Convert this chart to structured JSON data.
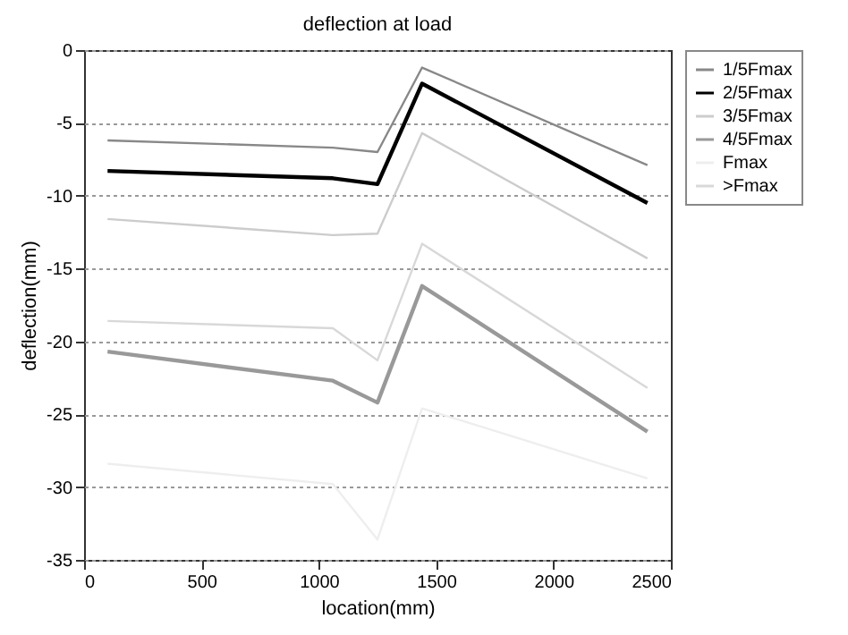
{
  "chart_data": {
    "type": "line",
    "title": "deflection at load",
    "xlabel": "location(mm)",
    "ylabel": "deflection(mm)",
    "x": [
      100,
      1060,
      1250,
      1440,
      2400
    ],
    "series": [
      {
        "name": "1/5Fmax",
        "color": "#888888",
        "values": [
          -6.2,
          -6.7,
          -7.0,
          -1.2,
          -7.9
        ]
      },
      {
        "name": "2/5Fmax",
        "color": "#000000",
        "values": [
          -8.3,
          -8.8,
          -9.2,
          -2.3,
          -10.5
        ]
      },
      {
        "name": "3/5Fmax",
        "color": "#cccccc",
        "values": [
          -11.6,
          -12.7,
          -12.6,
          -5.7,
          -14.3
        ]
      },
      {
        "name": "4/5Fmax",
        "color": "#999999",
        "values": [
          -20.7,
          -22.7,
          -24.2,
          -16.2,
          -26.2
        ]
      },
      {
        "name": "Fmax",
        "color": "#eeeeee",
        "values": [
          -28.4,
          -29.8,
          -33.6,
          -24.6,
          -29.4
        ]
      },
      {
        "name": ">Fmax",
        "color": "#d8d8d8",
        "values": [
          -18.6,
          -19.1,
          -21.3,
          -13.3,
          -23.2
        ]
      }
    ],
    "xlim": [
      0,
      2500
    ],
    "xticks": [
      0,
      500,
      1000,
      1500,
      2000,
      2500
    ],
    "ylim": [
      -35,
      0
    ],
    "yticks": [
      -35,
      -30,
      -25,
      -20,
      -15,
      -10,
      -5,
      0
    ],
    "grid": "y",
    "legend": "right",
    "marker": "none",
    "line_style": "solid"
  }
}
